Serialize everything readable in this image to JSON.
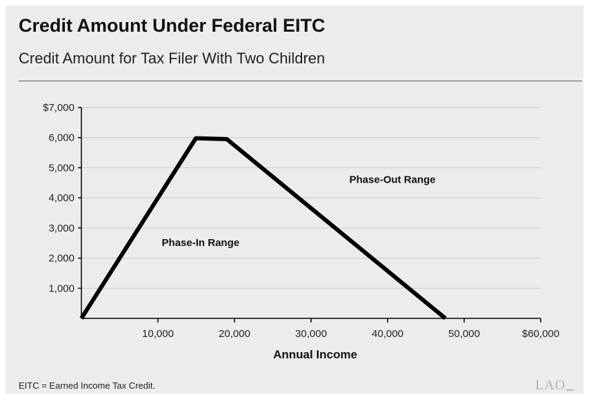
{
  "header": {
    "title": "Credit Amount Under Federal EITC",
    "subtitle": "Credit Amount for Tax Filer With Two Children"
  },
  "footer": {
    "footnote": "EITC = Earned Income Tax Credit.",
    "logo_text": "LAO"
  },
  "colors": {
    "background": "#ececec",
    "line": "#000000",
    "grid": "#c8c8c8",
    "logo": "#b5b5b5"
  },
  "chart_data": {
    "type": "line",
    "title": "Credit Amount Under Federal EITC",
    "subtitle": "Credit Amount for Tax Filer With Two Children",
    "xlabel": "Annual Income",
    "ylabel": "",
    "xlim": [
      0,
      60000
    ],
    "ylim": [
      0,
      7000
    ],
    "x_ticks": [
      10000,
      20000,
      30000,
      40000,
      50000,
      60000
    ],
    "x_tick_labels": [
      "10,000",
      "20,000",
      "30,000",
      "40,000",
      "50,000",
      "$60,000"
    ],
    "y_ticks": [
      1000,
      2000,
      3000,
      4000,
      5000,
      6000,
      7000
    ],
    "y_tick_labels": [
      "1,000",
      "2,000",
      "3,000",
      "4,000",
      "5,000",
      "6,000",
      "$7,000"
    ],
    "grid": "horizontal",
    "legend": "none",
    "series": [
      {
        "x": [
          0,
          14950,
          19000,
          47550
        ],
        "y": [
          0,
          5980,
          5950,
          0
        ]
      }
    ],
    "annotations": [
      {
        "text": "Phase-In Range",
        "x": 10500,
        "y": 2400
      },
      {
        "text": "Phase-Out Range",
        "x": 35000,
        "y": 4500
      }
    ]
  }
}
